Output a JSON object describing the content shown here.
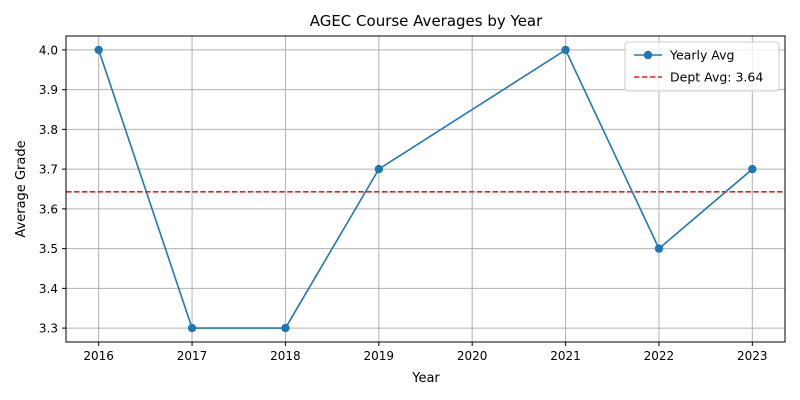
{
  "chart_data": {
    "type": "line",
    "title": "AGEC Course Averages by Year",
    "xlabel": "Year",
    "ylabel": "Average Grade",
    "x_ticks": [
      "2016",
      "2017",
      "2018",
      "2019",
      "2020",
      "2021",
      "2022",
      "2023"
    ],
    "y_ticks": [
      "3.3",
      "3.4",
      "3.5",
      "3.6",
      "3.7",
      "3.8",
      "3.9",
      "4.0"
    ],
    "xlim": [
      2015.65,
      2023.35
    ],
    "ylim": [
      3.265,
      4.035
    ],
    "grid": true,
    "legend_position": "top-right",
    "series": [
      {
        "name": "Yearly Avg",
        "kind": "line-marker",
        "color": "#1f77b4",
        "x": [
          2016,
          2017,
          2018,
          2019,
          2021,
          2022,
          2023
        ],
        "y": [
          4.0,
          3.3,
          3.3,
          3.7,
          4.0,
          3.5,
          3.7
        ]
      },
      {
        "name": "Dept Avg: 3.64",
        "kind": "hline-dashed",
        "color": "#d62728",
        "y": 3.642857
      }
    ]
  }
}
